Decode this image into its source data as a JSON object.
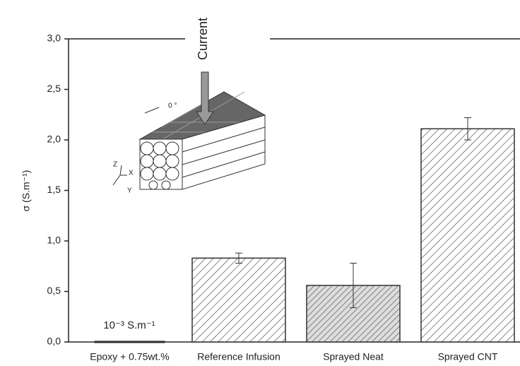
{
  "chart_data": {
    "type": "bar",
    "y_label": "σ (S.m⁻¹)",
    "categories": [
      "Epoxy + 0.75wt.%",
      "Reference Infusion",
      "Sprayed Neat",
      "Sprayed CNT"
    ],
    "values": [
      0.001,
      0.83,
      0.56,
      2.11
    ],
    "errors": [
      null,
      0.05,
      0.22,
      0.11
    ],
    "annotation": "10⁻³ S.m⁻¹",
    "ylim": [
      0,
      3
    ],
    "yticks": [
      {
        "value": 0,
        "label": "0,0"
      },
      {
        "value": 0.5,
        "label": "0,5"
      },
      {
        "value": 1,
        "label": "1,0"
      },
      {
        "value": 1.5,
        "label": "1,5"
      },
      {
        "value": 2,
        "label": "2,0"
      },
      {
        "value": 2.5,
        "label": "2,5"
      },
      {
        "value": 3,
        "label": "3,0"
      }
    ],
    "inset": {
      "arrow_label": "Current",
      "angle_label": "0 °",
      "axes": [
        "Z",
        "X",
        "Y"
      ]
    }
  }
}
